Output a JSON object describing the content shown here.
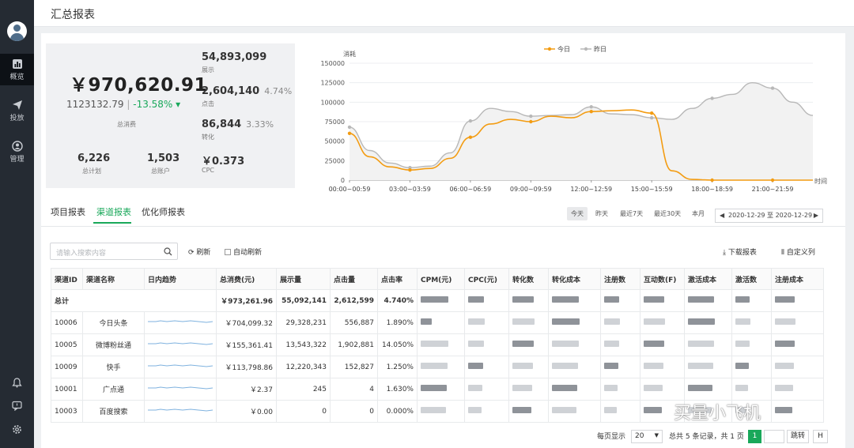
{
  "sidebar": {
    "items": [
      {
        "label": "概览",
        "icon": "chart-icon"
      },
      {
        "label": "投放",
        "icon": "send-icon"
      },
      {
        "label": "管理",
        "icon": "user-icon"
      }
    ]
  },
  "page": {
    "title": "汇总报表"
  },
  "summary": {
    "total_spend": "￥970,620.91",
    "compare_value": "1123132.79",
    "compare_sep": "|",
    "compare_change": "-13.58% ▾",
    "total_spend_label": "总消费",
    "impressions": "54,893,099",
    "impressions_label": "展示",
    "clicks": "2,604,140",
    "clicks_pct": "4.74%",
    "clicks_label": "点击",
    "conversions": "86,844",
    "conversions_pct": "3.33%",
    "conversions_label": "转化",
    "plans": "6,226",
    "plans_label": "总计划",
    "accounts": "1,503",
    "accounts_label": "总账户",
    "cpc": "￥0.373",
    "cpc_label": "CPC"
  },
  "chart_data": {
    "type": "line",
    "ylabel": "消耗",
    "xlabel": "时间",
    "ylim": [
      0,
      150000
    ],
    "yticks": [
      "150000",
      "125000",
      "100000",
      "75000",
      "50000",
      "25000",
      "0"
    ],
    "xticks": [
      "00:00~00:59",
      "03:00~03:59",
      "06:00~06:59",
      "09:00~09:59",
      "12:00~12:59",
      "15:00~15:59",
      "18:00~18:59",
      "21:00~21:59"
    ],
    "grid": true,
    "legend_position": "top",
    "categories": [
      "00",
      "01",
      "02",
      "03",
      "04",
      "05",
      "06",
      "07",
      "08",
      "09",
      "10",
      "11",
      "12",
      "13",
      "14",
      "15",
      "16",
      "17",
      "18",
      "19",
      "20",
      "21",
      "22",
      "23"
    ],
    "series": [
      {
        "name": "今日",
        "color": "#f39c12",
        "values": [
          60000,
          30000,
          17000,
          13000,
          15000,
          28000,
          55000,
          72000,
          78000,
          75000,
          82000,
          80000,
          88000,
          89000,
          90000,
          86000,
          12000,
          1000,
          0,
          0,
          0,
          0,
          0,
          0
        ],
        "markers": [
          0,
          3,
          6,
          9,
          12,
          15,
          18,
          21
        ]
      },
      {
        "name": "昨日",
        "color": "#b8b8b8",
        "values": [
          68000,
          38000,
          22000,
          16000,
          18000,
          35000,
          76000,
          92000,
          88000,
          82000,
          83000,
          84000,
          94000,
          85000,
          84000,
          80000,
          78000,
          92000,
          105000,
          110000,
          125000,
          118000,
          100000,
          83000
        ],
        "markers": [
          0,
          3,
          6,
          9,
          12,
          15,
          18,
          21
        ]
      }
    ]
  },
  "tabs": [
    {
      "label": "项目报表"
    },
    {
      "label": "渠道报表"
    },
    {
      "label": "优化师报表"
    }
  ],
  "date_filters": [
    "今天",
    "昨天",
    "最近7天",
    "最近30天",
    "本月"
  ],
  "date_range": {
    "text": "2020-12-29 至 2020-12-29",
    "prev": "◀",
    "next": "▶"
  },
  "toolbar": {
    "search_placeholder": "请输入搜索内容",
    "refresh": "⟳ 刷新",
    "auto_refresh": "自动刷新",
    "download": "⤓ 下载报表",
    "customize": "⦀ 自定义列"
  },
  "table": {
    "columns": [
      "渠道ID",
      "渠道名称",
      "日内趋势",
      "总消费(元)",
      "展示量",
      "点击量",
      "点击率",
      "CPM(元)",
      "CPC(元)",
      "转化数",
      "转化成本",
      "注册数",
      "互动数(F)",
      "激活成本",
      "激活数",
      "注册成本"
    ],
    "total": {
      "label": "总计",
      "spend": "￥973,261.96",
      "impressions": "55,092,141",
      "clicks": "2,612,599",
      "ctr": "4.740%"
    },
    "rows": [
      {
        "id": "10006",
        "name": "今日头条",
        "spend": "￥704,099.32",
        "impressions": "29,328,231",
        "clicks": "556,887",
        "ctr": "1.890%"
      },
      {
        "id": "10005",
        "name": "微博粉丝通",
        "spend": "￥155,361.41",
        "impressions": "13,543,322",
        "clicks": "1,902,881",
        "ctr": "14.050%"
      },
      {
        "id": "10009",
        "name": "快手",
        "spend": "￥113,798.86",
        "impressions": "12,220,343",
        "clicks": "152,827",
        "ctr": "1.250%"
      },
      {
        "id": "10001",
        "name": "广点通",
        "spend": "￥2.37",
        "impressions": "245",
        "clicks": "4",
        "ctr": "1.630%"
      },
      {
        "id": "10003",
        "name": "百度搜索",
        "spend": "￥0.00",
        "impressions": "0",
        "clicks": "0",
        "ctr": "0.000%"
      }
    ]
  },
  "pagination": {
    "per_page_label": "每页显示",
    "per_page": "20",
    "summary": "总共 5 条记录，共 1 页",
    "current": "1",
    "jump": "跳转",
    "last": "H"
  },
  "watermark": "买量小飞机"
}
